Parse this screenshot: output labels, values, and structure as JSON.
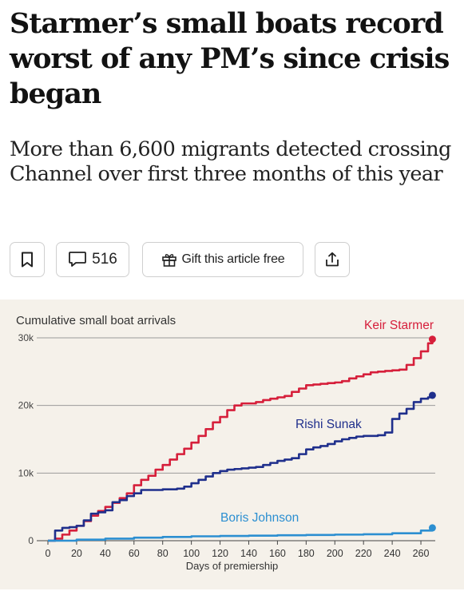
{
  "article": {
    "headline": "Starmer’s small boats record worst of any PM’s since crisis began",
    "standfirst": "More than 6,600 migrants detected crossing Channel over first three months of this year"
  },
  "toolbar": {
    "bookmark_icon": "bookmark-icon",
    "comments_icon": "comment-icon",
    "comment_count": "516",
    "gift_icon": "gift-icon",
    "gift_label": "Gift this article free",
    "share_icon": "share-icon"
  },
  "chart_data": {
    "type": "line",
    "title": "Cumulative small boat arrivals",
    "xlabel": "Days of premiership",
    "ylabel": "",
    "xlim": [
      0,
      270
    ],
    "ylim": [
      0,
      30000
    ],
    "x_ticks": [
      0,
      20,
      40,
      60,
      80,
      100,
      120,
      140,
      160,
      180,
      200,
      220,
      240,
      260
    ],
    "y_ticks": [
      {
        "value": 0,
        "label": "0"
      },
      {
        "value": 10000,
        "label": "10k"
      },
      {
        "value": 20000,
        "label": "20k"
      },
      {
        "value": 30000,
        "label": "30k"
      }
    ],
    "grid": "horizontal",
    "series": [
      {
        "name": "Keir Starmer",
        "color": "#d61f3b",
        "x": [
          0,
          5,
          10,
          15,
          20,
          25,
          30,
          35,
          40,
          45,
          50,
          55,
          60,
          65,
          70,
          75,
          80,
          85,
          90,
          95,
          100,
          105,
          110,
          115,
          120,
          125,
          130,
          135,
          140,
          145,
          150,
          155,
          160,
          165,
          170,
          175,
          180,
          185,
          190,
          195,
          200,
          205,
          210,
          215,
          220,
          225,
          230,
          235,
          240,
          245,
          250,
          255,
          260,
          265,
          268
        ],
        "y": [
          0,
          300,
          900,
          1500,
          2200,
          2900,
          3700,
          4400,
          5000,
          5600,
          6300,
          7000,
          8200,
          9000,
          9600,
          10500,
          11200,
          12000,
          12800,
          13600,
          14500,
          15500,
          16500,
          17500,
          18300,
          19300,
          20000,
          20300,
          20300,
          20500,
          20800,
          21000,
          21200,
          21400,
          22000,
          22500,
          23000,
          23100,
          23200,
          23300,
          23400,
          23600,
          24000,
          24300,
          24600,
          24900,
          25000,
          25100,
          25200,
          25300,
          26000,
          27000,
          28000,
          29200,
          29800
        ]
      },
      {
        "name": "Rishi Sunak",
        "color": "#1f2f8c",
        "x": [
          0,
          5,
          10,
          15,
          20,
          25,
          30,
          35,
          40,
          45,
          50,
          55,
          60,
          65,
          70,
          75,
          80,
          85,
          90,
          95,
          100,
          105,
          110,
          115,
          120,
          125,
          130,
          135,
          140,
          145,
          150,
          155,
          160,
          165,
          170,
          175,
          180,
          185,
          190,
          195,
          200,
          205,
          210,
          215,
          220,
          225,
          230,
          235,
          240,
          245,
          250,
          255,
          260,
          265,
          268
        ],
        "y": [
          0,
          1500,
          1900,
          2000,
          2200,
          3000,
          4000,
          4200,
          4500,
          5700,
          6000,
          6600,
          7000,
          7500,
          7500,
          7500,
          7600,
          7600,
          7700,
          8000,
          8500,
          9000,
          9500,
          10000,
          10300,
          10500,
          10600,
          10700,
          10800,
          10900,
          11200,
          11500,
          11800,
          12000,
          12200,
          12800,
          13500,
          13800,
          14000,
          14300,
          14700,
          15000,
          15200,
          15400,
          15500,
          15500,
          15600,
          16000,
          18000,
          18800,
          19500,
          20500,
          21000,
          21200,
          21500
        ]
      },
      {
        "name": "Boris Johnson",
        "color": "#2c8fd1",
        "x": [
          0,
          20,
          40,
          60,
          80,
          100,
          120,
          140,
          160,
          180,
          200,
          220,
          240,
          260,
          268
        ],
        "y": [
          0,
          150,
          300,
          450,
          550,
          650,
          700,
          750,
          800,
          850,
          900,
          950,
          1100,
          1500,
          1900
        ]
      }
    ]
  }
}
